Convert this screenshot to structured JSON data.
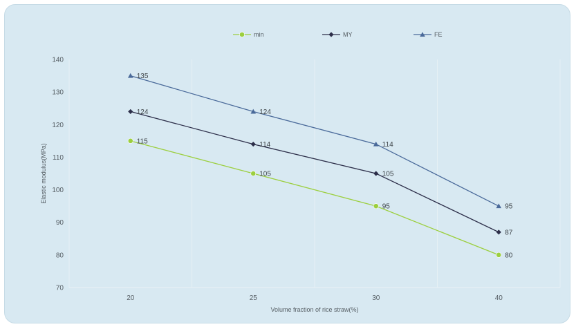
{
  "chart_data": {
    "type": "line",
    "title": "",
    "xlabel": "Volume fraction of rice straw(%)",
    "ylabel": "Elastic modulus(MPa)",
    "categories": [
      "20",
      "25",
      "30",
      "40"
    ],
    "ylim": [
      70,
      140
    ],
    "yticks": [
      70,
      80,
      90,
      100,
      110,
      120,
      130,
      140
    ],
    "grid": "vertical",
    "legend_position": "top",
    "series": [
      {
        "name": "min",
        "color": "#9ccf3f",
        "marker": "circle",
        "values": [
          115,
          105,
          95,
          80
        ],
        "labels": [
          "115",
          "105",
          "95",
          "80"
        ]
      },
      {
        "name": "MY",
        "color": "#2d2f4a",
        "marker": "diamond",
        "values": [
          124,
          114,
          105,
          87
        ],
        "labels": [
          "124",
          "114",
          "105",
          "87"
        ]
      },
      {
        "name": "FE",
        "color": "#4a6a9a",
        "marker": "triangle",
        "values": [
          135,
          124,
          114,
          95
        ],
        "labels": [
          "135",
          "124",
          "114",
          "95"
        ]
      }
    ]
  }
}
